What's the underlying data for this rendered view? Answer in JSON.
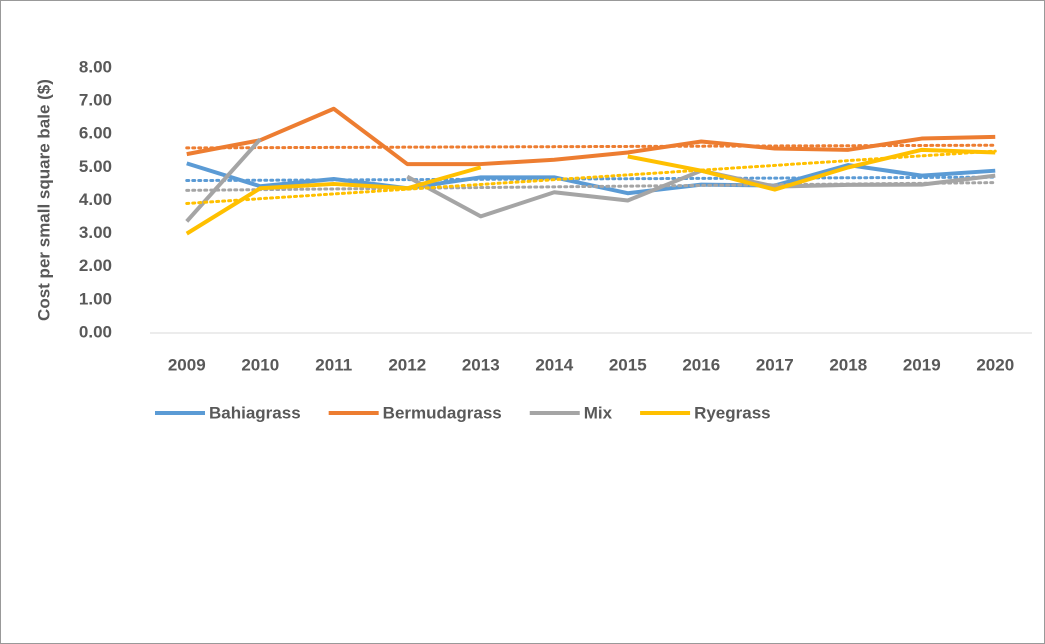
{
  "chart_data": {
    "type": "line",
    "y_label": "Cost per small square bale ($)",
    "categories": [
      "2009",
      "2010",
      "2011",
      "2012",
      "2013",
      "2014",
      "2015",
      "2016",
      "2017",
      "2018",
      "2019",
      "2020"
    ],
    "series": [
      {
        "name": "Bahiagrass",
        "color": "#5b9bd5",
        "values": [
          5.12,
          4.43,
          4.65,
          4.37,
          4.7,
          4.7,
          4.22,
          4.48,
          4.45,
          5.07,
          4.75,
          4.9
        ]
      },
      {
        "name": "Bermudagrass",
        "color": "#ed7d31",
        "values": [
          5.4,
          5.82,
          6.77,
          5.1,
          5.1,
          5.23,
          5.45,
          5.78,
          5.57,
          5.53,
          5.87,
          5.92
        ]
      },
      {
        "name": "Mix",
        "color": "#a5a5a5",
        "values": [
          3.37,
          5.85,
          null,
          4.72,
          3.52,
          4.25,
          4.0,
          4.9,
          4.42,
          4.47,
          4.48,
          4.75
        ]
      },
      {
        "name": "Ryegrass",
        "color": "#ffc000",
        "values": [
          3.0,
          4.37,
          4.5,
          4.37,
          5.0,
          null,
          5.33,
          4.9,
          4.33,
          5.0,
          5.53,
          5.45
        ]
      }
    ],
    "ylim": [
      0,
      8
    ],
    "yticks": [
      {
        "value": 0,
        "label": "0.00"
      },
      {
        "value": 1,
        "label": "1.00"
      },
      {
        "value": 2,
        "label": "2.00"
      },
      {
        "value": 3,
        "label": "3.00"
      },
      {
        "value": 4,
        "label": "4.00"
      },
      {
        "value": 5,
        "label": "5.00"
      },
      {
        "value": 6,
        "label": "6.00"
      },
      {
        "value": 7,
        "label": "7.00"
      },
      {
        "value": 8,
        "label": "8.00"
      }
    ],
    "trendline": "linear",
    "legend": "bottom"
  }
}
